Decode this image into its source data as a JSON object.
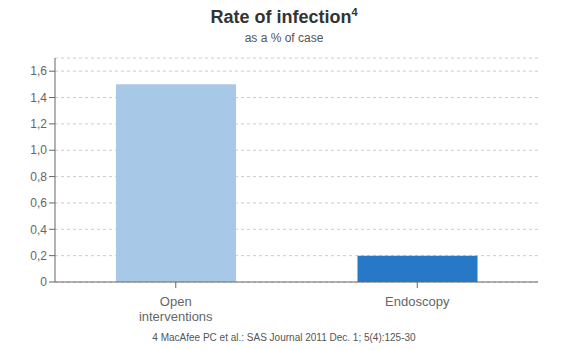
{
  "chart_data": {
    "type": "bar",
    "title": "Rate of infection",
    "subtitle": "as a % of case",
    "annotations": [
      "4",
      "4 MacAfee PC et al.: SAS Journal 2011 Dec. 1; 5(4):125-30"
    ],
    "categories": [
      "Open\ninterventions",
      "Endoscopy"
    ],
    "values": [
      1.5,
      0.2
    ],
    "colors": [
      "#a8c8e8",
      "#2878c8"
    ],
    "ylim": [
      0,
      1.7
    ],
    "yticks": [
      0,
      {
        "value": 0.2,
        "label": "0,2"
      },
      {
        "value": 0.4,
        "label": "0,4"
      },
      {
        "value": 0.6,
        "label": "0,6"
      },
      {
        "value": 0.8,
        "label": "0,8"
      },
      {
        "value": 1.0,
        "label": "1,0"
      },
      {
        "value": 1.2,
        "label": "1,2"
      },
      {
        "value": 1.4,
        "label": "1,4"
      },
      {
        "value": 1.6,
        "label": "1,6"
      }
    ],
    "grid": true
  }
}
